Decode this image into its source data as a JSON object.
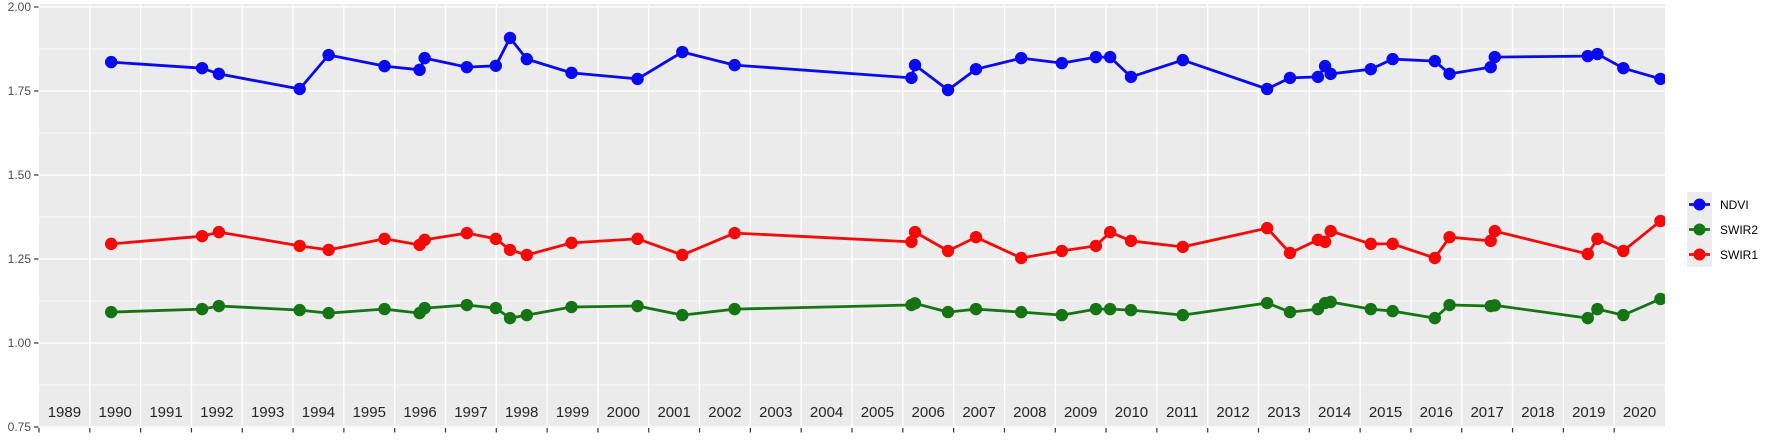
{
  "chart_data": {
    "type": "line",
    "title": "",
    "xlabel": "",
    "ylabel": "",
    "x_axis": {
      "tick_labels": [
        "1989",
        "1990",
        "1991",
        "1992",
        "1993",
        "1994",
        "1995",
        "1996",
        "1997",
        "1998",
        "1999",
        "2000",
        "2001",
        "2002",
        "2003",
        "2004",
        "2005",
        "2006",
        "2007",
        "2008",
        "2009",
        "2010",
        "2011",
        "2012",
        "2013",
        "2014",
        "2015",
        "2016",
        "2017",
        "2018",
        "2019",
        "2020"
      ],
      "tick_values": [
        1989,
        1990,
        1991,
        1992,
        1993,
        1994,
        1995,
        1996,
        1997,
        1998,
        1999,
        2000,
        2001,
        2002,
        2003,
        2004,
        2005,
        2006,
        2007,
        2008,
        2009,
        2010,
        2011,
        2012,
        2013,
        2014,
        2015,
        2016,
        2017,
        2018,
        2019,
        2020
      ],
      "range": [
        1989,
        2021
      ]
    },
    "y_axis": {
      "tick_labels": [
        "2.00",
        "1.75",
        "1.50",
        "1.25",
        "1.00",
        "0.75"
      ],
      "tick_values": [
        2.0,
        1.75,
        1.5,
        1.25,
        1.0,
        0.75
      ],
      "minor_tick_values": [
        1.875,
        1.625,
        1.375,
        1.125,
        0.875
      ],
      "range": [
        0.75,
        2.0
      ]
    },
    "grid": "on",
    "legend_position": "right",
    "x": [
      1990.42,
      1992.21,
      1992.54,
      1994.13,
      1994.7,
      1995.8,
      1996.49,
      1996.59,
      1997.42,
      1997.99,
      1998.27,
      1998.6,
      1999.48,
      2000.78,
      2001.66,
      2002.69,
      2006.17,
      2006.24,
      2006.89,
      2007.44,
      2008.33,
      2009.13,
      2009.8,
      2010.08,
      2010.49,
      2011.51,
      2013.17,
      2013.62,
      2014.17,
      2014.31,
      2014.42,
      2015.21,
      2015.64,
      2016.47,
      2016.76,
      2017.57,
      2017.65,
      2019.48,
      2019.67,
      2020.18,
      2020.91
    ],
    "series": [
      {
        "name": "NDVI",
        "color": "#0a0af0",
        "values": [
          1.836,
          1.818,
          1.801,
          1.756,
          1.857,
          1.824,
          1.813,
          1.848,
          1.821,
          1.825,
          1.908,
          1.845,
          1.804,
          1.786,
          1.866,
          1.827,
          1.789,
          1.827,
          1.753,
          1.815,
          1.848,
          1.833,
          1.851,
          1.851,
          1.792,
          1.842,
          1.756,
          1.789,
          1.792,
          1.824,
          1.801,
          1.815,
          1.845,
          1.839,
          1.801,
          1.821,
          1.851,
          1.854,
          1.86,
          1.818,
          1.786
        ]
      },
      {
        "name": "SWIR2",
        "color": "#157515",
        "values": [
          1.092,
          1.101,
          1.11,
          1.098,
          1.089,
          1.101,
          1.089,
          1.104,
          1.113,
          1.104,
          1.074,
          1.083,
          1.107,
          1.11,
          1.083,
          1.101,
          1.113,
          1.118,
          1.092,
          1.101,
          1.092,
          1.083,
          1.101,
          1.101,
          1.098,
          1.083,
          1.119,
          1.092,
          1.101,
          1.119,
          1.122,
          1.101,
          1.095,
          1.074,
          1.113,
          1.11,
          1.112,
          1.074,
          1.101,
          1.083,
          1.131
        ]
      },
      {
        "name": "SWIR1",
        "color": "#f50a0a",
        "values": [
          1.295,
          1.318,
          1.33,
          1.289,
          1.277,
          1.31,
          1.292,
          1.307,
          1.327,
          1.31,
          1.277,
          1.262,
          1.298,
          1.31,
          1.262,
          1.327,
          1.301,
          1.33,
          1.274,
          1.315,
          1.253,
          1.274,
          1.289,
          1.33,
          1.304,
          1.286,
          1.342,
          1.268,
          1.307,
          1.301,
          1.333,
          1.295,
          1.295,
          1.253,
          1.315,
          1.304,
          1.333,
          1.265,
          1.31,
          1.274,
          1.363
        ]
      }
    ],
    "style": {
      "panel_bg": "#ebebeb",
      "grid_color": "#ffffff",
      "tick_color": "#333333",
      "y_label_color": "#4d4d4d",
      "x_label_color": "#262626",
      "legend_key_bg": "#ececec"
    }
  }
}
